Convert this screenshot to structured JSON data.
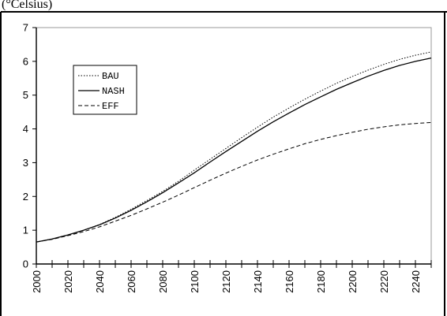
{
  "header_fragment": "(°Celsius)",
  "chart_data": {
    "type": "line",
    "title": "",
    "xlabel": "",
    "ylabel": "",
    "xlim": [
      2000,
      2250
    ],
    "ylim": [
      0,
      7
    ],
    "yticks": [
      0,
      1,
      2,
      3,
      4,
      5,
      6,
      7
    ],
    "xticks": [
      2000,
      2020,
      2040,
      2060,
      2080,
      2100,
      2120,
      2140,
      2160,
      2180,
      2200,
      2220,
      2240
    ],
    "x_minor_step": 10,
    "grid": false,
    "legend_placement": "top-left",
    "series": [
      {
        "name": "BAU",
        "style": "dotted",
        "x": [
          2000,
          2010,
          2020,
          2030,
          2040,
          2050,
          2060,
          2070,
          2080,
          2090,
          2100,
          2110,
          2120,
          2130,
          2140,
          2150,
          2160,
          2170,
          2180,
          2190,
          2200,
          2210,
          2220,
          2230,
          2240,
          2250
        ],
        "values": [
          0.65,
          0.74,
          0.86,
          1.0,
          1.17,
          1.38,
          1.62,
          1.88,
          2.15,
          2.45,
          2.78,
          3.1,
          3.42,
          3.74,
          4.05,
          4.35,
          4.62,
          4.88,
          5.12,
          5.35,
          5.55,
          5.74,
          5.91,
          6.06,
          6.18,
          6.28
        ]
      },
      {
        "name": "NASH",
        "style": "solid",
        "x": [
          2000,
          2010,
          2020,
          2030,
          2040,
          2050,
          2060,
          2070,
          2080,
          2090,
          2100,
          2110,
          2120,
          2130,
          2140,
          2150,
          2160,
          2170,
          2180,
          2190,
          2200,
          2210,
          2220,
          2230,
          2240,
          2250
        ],
        "values": [
          0.65,
          0.74,
          0.86,
          1.0,
          1.16,
          1.36,
          1.59,
          1.84,
          2.11,
          2.4,
          2.7,
          3.02,
          3.33,
          3.63,
          3.93,
          4.21,
          4.47,
          4.72,
          4.95,
          5.17,
          5.37,
          5.56,
          5.73,
          5.88,
          6.0,
          6.1
        ]
      },
      {
        "name": "EFF",
        "style": "dashed",
        "x": [
          2000,
          2010,
          2020,
          2030,
          2040,
          2050,
          2060,
          2070,
          2080,
          2090,
          2100,
          2110,
          2120,
          2130,
          2140,
          2150,
          2160,
          2170,
          2180,
          2190,
          2200,
          2210,
          2220,
          2230,
          2240,
          2250
        ],
        "values": [
          0.65,
          0.73,
          0.84,
          0.96,
          1.1,
          1.27,
          1.44,
          1.63,
          1.83,
          2.04,
          2.26,
          2.48,
          2.69,
          2.89,
          3.08,
          3.25,
          3.41,
          3.56,
          3.69,
          3.8,
          3.9,
          3.99,
          4.06,
          4.12,
          4.16,
          4.19
        ]
      }
    ]
  },
  "colors": {
    "line": "#000000",
    "background": "#ffffff"
  }
}
